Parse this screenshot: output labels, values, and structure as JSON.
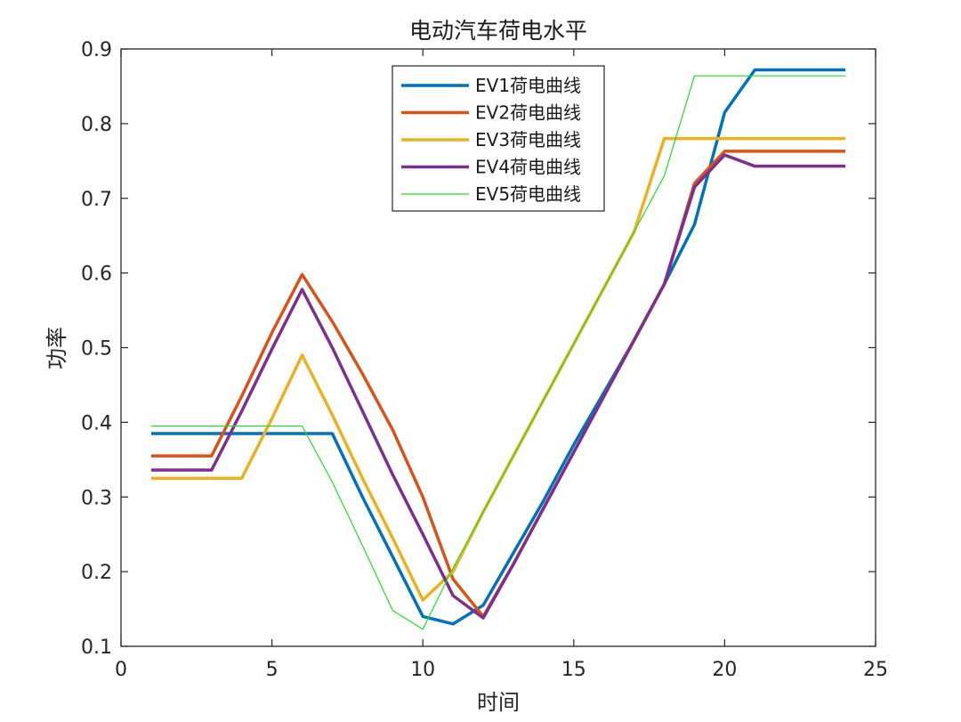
{
  "chart_data": {
    "type": "line",
    "title": "电动汽车荷电水平",
    "xlabel": "时间",
    "ylabel": "功率",
    "xlim": [
      0,
      25
    ],
    "ylim": [
      0.1,
      0.9
    ],
    "xticks": [
      0,
      5,
      10,
      15,
      20,
      25
    ],
    "xtick_labels": [
      "0",
      "5",
      "10",
      "15",
      "20",
      "25"
    ],
    "yticks": [
      0.1,
      0.2,
      0.3,
      0.4,
      0.5,
      0.6,
      0.7,
      0.8,
      0.9
    ],
    "ytick_labels": [
      "0.1",
      "0.2",
      "0.3",
      "0.4",
      "0.5",
      "0.6",
      "0.7",
      "0.8",
      "0.9"
    ],
    "grid": false,
    "legend_position": "top-center",
    "x": [
      1,
      2,
      3,
      4,
      5,
      6,
      7,
      8,
      9,
      10,
      11,
      12,
      13,
      14,
      15,
      16,
      17,
      18,
      19,
      20,
      21,
      22,
      23,
      24
    ],
    "series": [
      {
        "name": "EV1荷电曲线",
        "color": "#0072BD",
        "values": [
          0.385,
          0.385,
          0.385,
          0.385,
          0.385,
          0.385,
          0.385,
          0.3,
          0.22,
          0.14,
          0.13,
          0.155,
          0.225,
          0.295,
          0.37,
          0.44,
          0.51,
          0.585,
          0.665,
          0.815,
          0.872,
          0.872,
          0.872,
          0.872
        ]
      },
      {
        "name": "EV2荷电曲线",
        "color": "#D95319",
        "values": [
          0.355,
          0.355,
          0.355,
          0.435,
          0.52,
          0.598,
          0.535,
          0.465,
          0.39,
          0.3,
          0.19,
          0.14,
          0.21,
          0.285,
          0.36,
          0.435,
          0.51,
          0.585,
          0.72,
          0.763,
          0.763,
          0.763,
          0.763,
          0.763
        ]
      },
      {
        "name": "EV3荷电曲线",
        "color": "#EDB120",
        "values": [
          0.325,
          0.325,
          0.325,
          0.325,
          0.405,
          0.49,
          0.41,
          0.325,
          0.245,
          0.162,
          0.2,
          0.28,
          0.355,
          0.43,
          0.505,
          0.58,
          0.655,
          0.78,
          0.78,
          0.78,
          0.78,
          0.78,
          0.78,
          0.78
        ]
      },
      {
        "name": "EV4荷电曲线",
        "color": "#7E2F8E",
        "values": [
          0.336,
          0.336,
          0.336,
          0.415,
          0.498,
          0.578,
          0.5,
          0.415,
          0.33,
          0.25,
          0.168,
          0.138,
          0.21,
          0.285,
          0.36,
          0.435,
          0.51,
          0.585,
          0.715,
          0.758,
          0.743,
          0.743,
          0.743,
          0.743
        ]
      },
      {
        "name": "EV5荷电曲线",
        "color": "#21E021",
        "values": [
          0.395,
          0.395,
          0.395,
          0.395,
          0.395,
          0.395,
          0.32,
          0.235,
          0.148,
          0.123,
          0.205,
          0.28,
          0.355,
          0.43,
          0.505,
          0.58,
          0.655,
          0.73,
          0.864,
          0.864,
          0.864,
          0.864,
          0.864,
          0.864
        ]
      }
    ]
  }
}
